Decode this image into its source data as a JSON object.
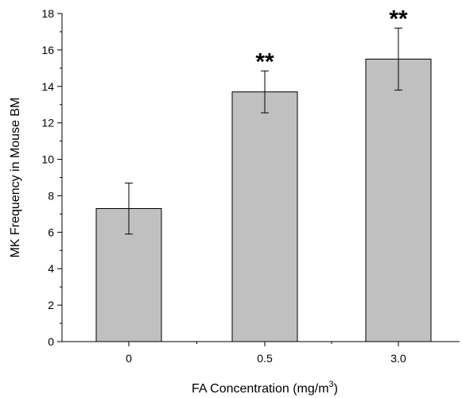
{
  "chart_data": {
    "type": "bar",
    "title": "",
    "xlabel": "FA Concentration (mg/m",
    "xlabel_superscript": "3",
    "xlabel_suffix": ")",
    "ylabel": "MK Frequency in Mouse BM",
    "categories": [
      "0",
      "0.5",
      "3.0"
    ],
    "values": [
      7.3,
      13.7,
      15.5
    ],
    "error": [
      1.4,
      1.15,
      1.7
    ],
    "significance": [
      "",
      "**",
      "**"
    ],
    "ylim": [
      0,
      18
    ],
    "yticks": [
      "0",
      "2",
      "4",
      "6",
      "8",
      "10",
      "12",
      "14",
      "16",
      "18"
    ],
    "grid": false,
    "legend": "none",
    "bar_color": "#c0c0c0",
    "edge_color": "#000000"
  }
}
